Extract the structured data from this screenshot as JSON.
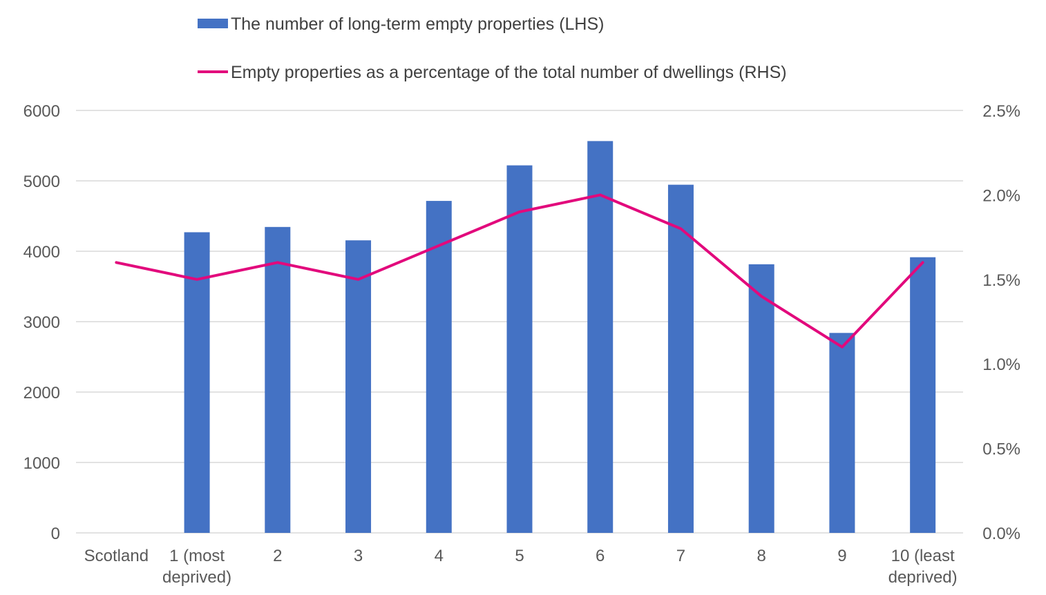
{
  "chart_data": {
    "type": "bar",
    "categories": [
      [
        "Scotland"
      ],
      [
        "1 (most",
        "deprived)"
      ],
      [
        "2"
      ],
      [
        "3"
      ],
      [
        "4"
      ],
      [
        "5"
      ],
      [
        "6"
      ],
      [
        "7"
      ],
      [
        "8"
      ],
      [
        "9"
      ],
      [
        "10 (least",
        "deprived)"
      ]
    ],
    "series": [
      {
        "name": "The number of long-term empty properties (LHS)",
        "type": "bar",
        "axis": "left",
        "color": "#4472c4",
        "values": [
          null,
          4270,
          4345,
          4155,
          4715,
          5220,
          5565,
          4945,
          3815,
          2840,
          3915
        ]
      },
      {
        "name": "Empty properties as a percentage of the total number of dwellings (RHS)",
        "type": "line",
        "axis": "right",
        "color": "#e2097c",
        "values": [
          1.6,
          1.5,
          1.6,
          1.5,
          1.7,
          1.9,
          2.0,
          1.8,
          1.4,
          1.1,
          1.6
        ]
      }
    ],
    "y_left": {
      "min": 0,
      "max": 6000,
      "ticks": [
        "0",
        "1000",
        "2000",
        "3000",
        "4000",
        "5000",
        "6000"
      ]
    },
    "y_right": {
      "min": 0,
      "max": 2.5,
      "ticks": [
        "0.0%",
        "0.5%",
        "1.0%",
        "1.5%",
        "2.0%",
        "2.5%"
      ]
    },
    "grid": true,
    "legend_position": "top-center"
  }
}
